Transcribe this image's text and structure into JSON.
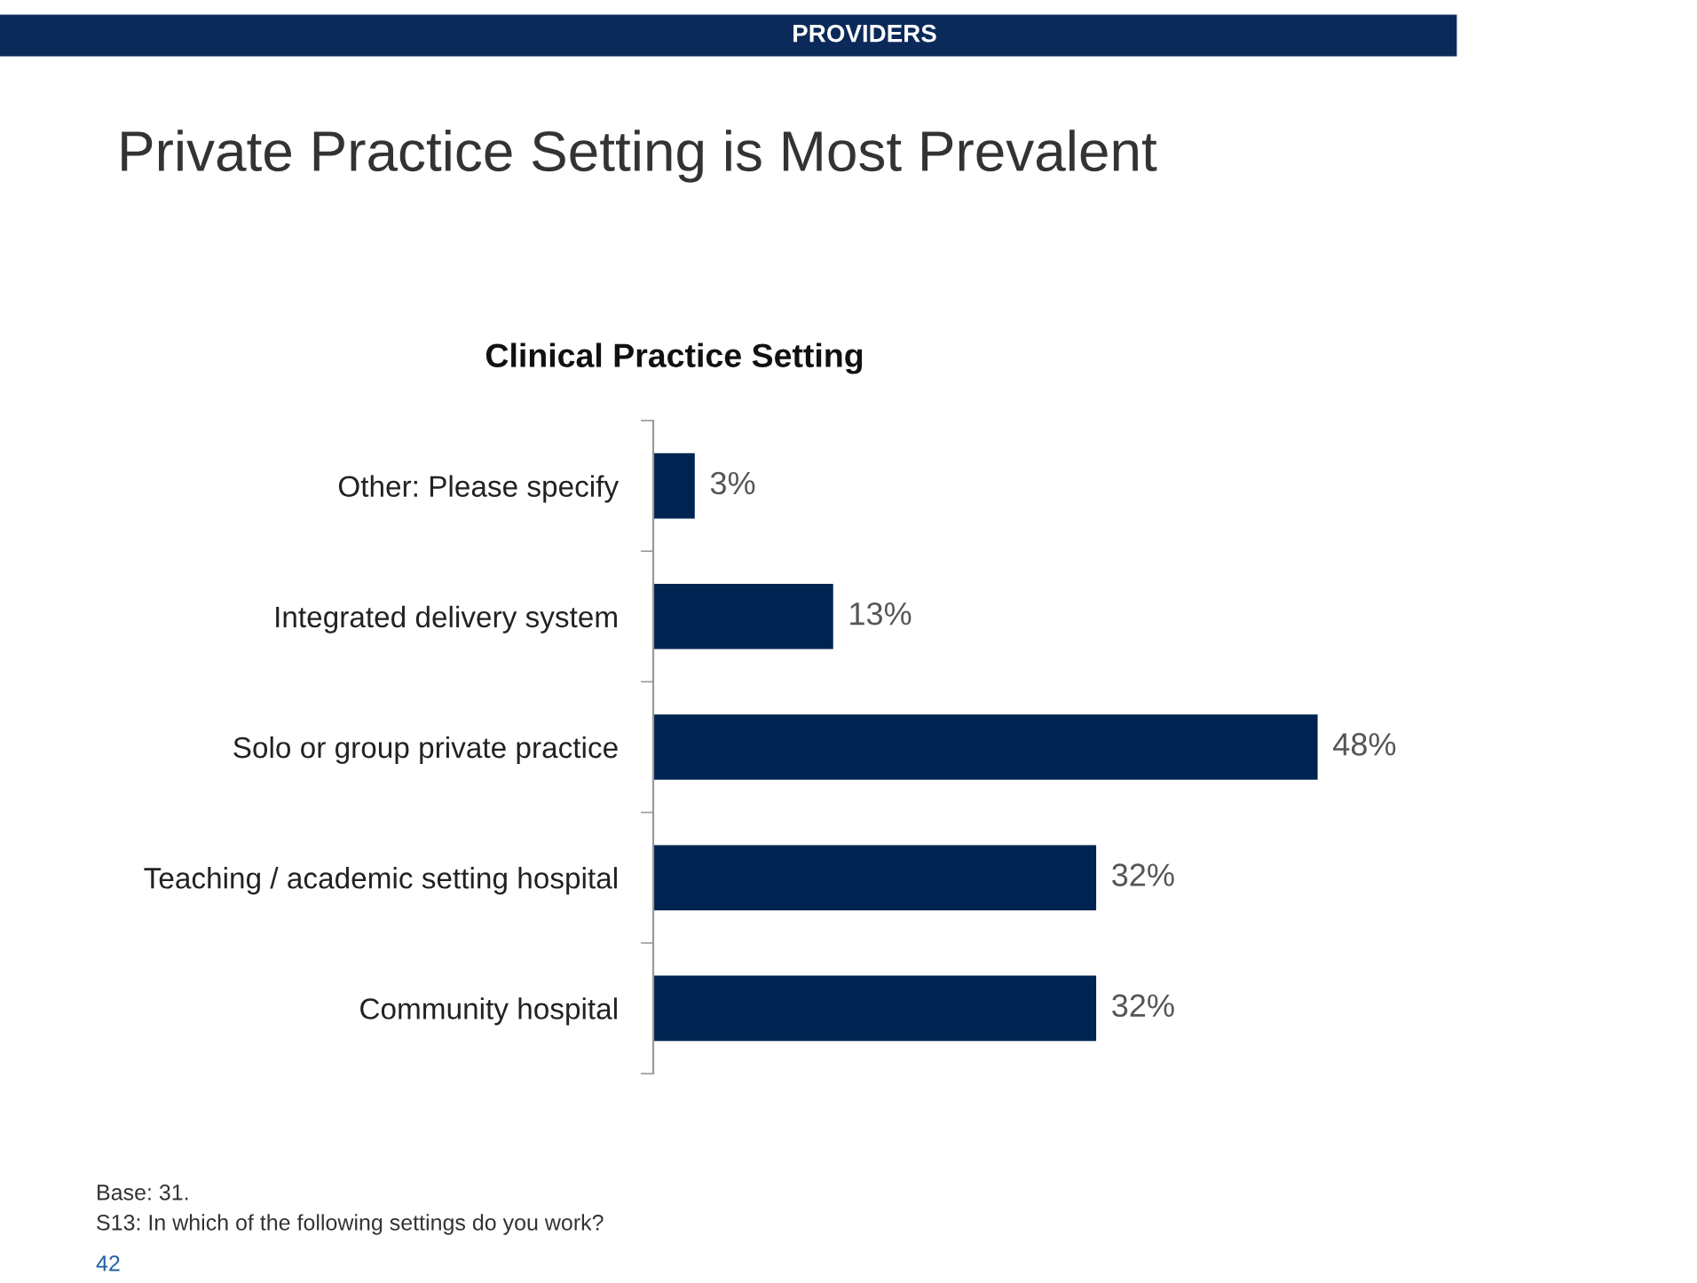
{
  "chart_data": {
    "type": "bar",
    "orientation": "horizontal",
    "title": "Private Practice Setting is Most Prevalent",
    "subtitle": "Clinical Practice Setting",
    "categories": [
      "Other: Please specify",
      "Integrated delivery system",
      "Solo or group private practice",
      "Teaching / academic setting hospital",
      "Community hospital"
    ],
    "values": [
      3,
      13,
      48,
      32,
      32
    ],
    "value_labels": [
      "3%",
      "13%",
      "48%",
      "32%",
      "32%"
    ],
    "color": "#002451",
    "tick_labels": "y",
    "grid": false,
    "legend": false,
    "annotations": [
      "PROVIDERS",
      "Base: 31.",
      "S13: In which of the following settings do you work?",
      "42"
    ]
  }
}
